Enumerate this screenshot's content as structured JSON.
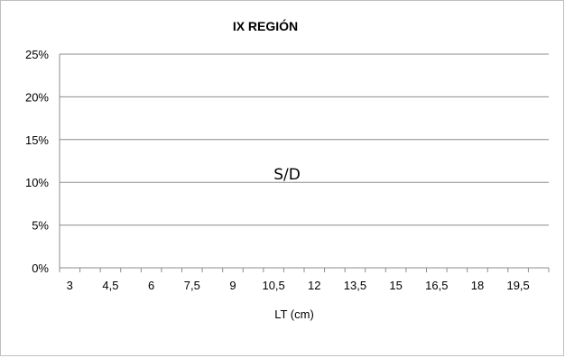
{
  "chart_data": {
    "type": "bar",
    "title": "IX REGIÓN",
    "xlabel": "LT (cm)",
    "ylabel": "",
    "categories": [
      "3",
      "4,5",
      "6",
      "7,5",
      "9",
      "10,5",
      "12",
      "13,5",
      "15",
      "16,5",
      "18",
      "19,5"
    ],
    "minor_steps": 24,
    "y_ticks": [
      "0%",
      "5%",
      "10%",
      "15%",
      "20%",
      "25%"
    ],
    "ylim": [
      0,
      0.25
    ],
    "series": [],
    "annotation": "S/D",
    "grid": true,
    "legend": "none",
    "colors": {
      "gridline": "#8c8c8c",
      "axis": "#8c8c8c",
      "text": "#000000",
      "border": "#bfbfbf"
    }
  }
}
